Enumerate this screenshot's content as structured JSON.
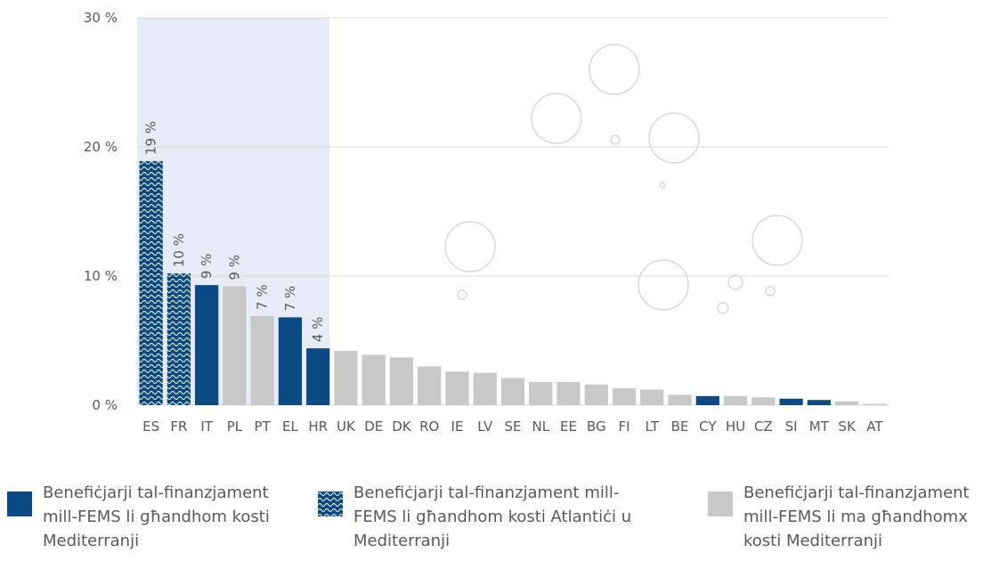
{
  "chart_data": {
    "type": "bar",
    "categories": [
      "ES",
      "FR",
      "IT",
      "PL",
      "PT",
      "EL",
      "HR",
      "UK",
      "DE",
      "DK",
      "RO",
      "IE",
      "LV",
      "SE",
      "NL",
      "EE",
      "BG",
      "FI",
      "LT",
      "BE",
      "CY",
      "HU",
      "CZ",
      "SI",
      "MT",
      "SK",
      "AT"
    ],
    "series": [
      {
        "name": "Benefiċjarji tal-finanzjament mill-FEMS li għandhom kosti Mediterranji",
        "color": "#0b4a82",
        "values": [
          null,
          null,
          9.3,
          null,
          null,
          6.8,
          4.4,
          null,
          null,
          null,
          null,
          null,
          null,
          null,
          null,
          null,
          null,
          null,
          null,
          null,
          0.7,
          null,
          null,
          0.5,
          0.4,
          null,
          null
        ],
        "value_labels": [
          null,
          null,
          "9 %",
          null,
          null,
          "7 %",
          "4 %",
          null,
          null,
          null,
          null,
          null,
          null,
          null,
          null,
          null,
          null,
          null,
          null,
          null,
          null,
          null,
          null,
          null,
          null,
          null,
          null
        ]
      },
      {
        "name": "Benefiċjarji tal-finanzjament mill-FEMS li għandhom kosti Atlantiċi u Mediterranji",
        "color": "#0b4a82",
        "pattern": "wave",
        "values": [
          18.9,
          10.2,
          null,
          null,
          null,
          null,
          null,
          null,
          null,
          null,
          null,
          null,
          null,
          null,
          null,
          null,
          null,
          null,
          null,
          null,
          null,
          null,
          null,
          null,
          null,
          null,
          null
        ],
        "value_labels": [
          "19 %",
          "10 %",
          null,
          null,
          null,
          null,
          null,
          null,
          null,
          null,
          null,
          null,
          null,
          null,
          null,
          null,
          null,
          null,
          null,
          null,
          null,
          null,
          null,
          null,
          null,
          null,
          null
        ]
      },
      {
        "name": "Benefiċjarji tal-finanzjament mill-FEMS li ma għandhomx kosti Mediterranji",
        "color": "#c8c8c8",
        "values": [
          null,
          null,
          null,
          9.2,
          6.9,
          null,
          null,
          4.2,
          3.9,
          3.7,
          3.0,
          2.6,
          2.5,
          2.1,
          1.8,
          1.8,
          1.6,
          1.3,
          1.2,
          0.8,
          null,
          0.7,
          0.6,
          null,
          null,
          0.3,
          0.1
        ],
        "value_labels": [
          null,
          null,
          null,
          "9 %",
          "7 %",
          null,
          null,
          null,
          null,
          null,
          null,
          null,
          null,
          null,
          null,
          null,
          null,
          null,
          null,
          null,
          null,
          null,
          null,
          null,
          null,
          null,
          null
        ]
      }
    ],
    "ylim": [
      0,
      30
    ],
    "yticks": [
      {
        "value": 0,
        "label": "0 %"
      },
      {
        "value": 10,
        "label": "10 %"
      },
      {
        "value": 20,
        "label": "20 %"
      },
      {
        "value": 30,
        "label": "30 %"
      }
    ],
    "grid": true
  }
}
